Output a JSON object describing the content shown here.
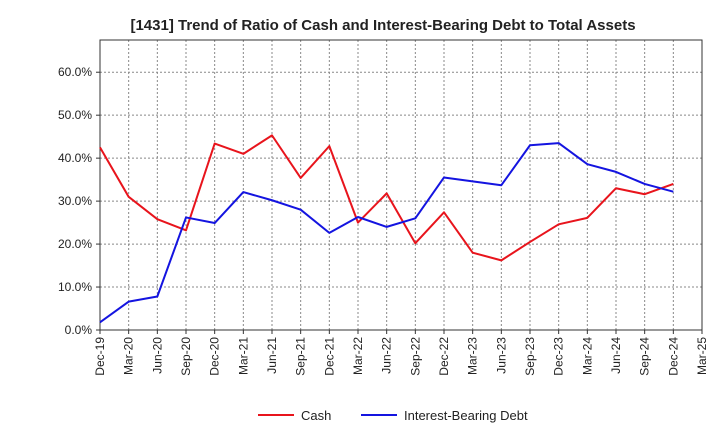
{
  "chart_data": {
    "type": "line",
    "title": "[1431]  Trend of Ratio of Cash and Interest-Bearing Debt to Total Assets",
    "xlabel": "",
    "ylabel": "",
    "ylim": [
      0,
      0.675
    ],
    "grid": true,
    "legend_position": "bottom-center",
    "y_ticks": [
      {
        "value": 0.0,
        "label": "0.0%"
      },
      {
        "value": 0.1,
        "label": "10.0%"
      },
      {
        "value": 0.2,
        "label": "20.0%"
      },
      {
        "value": 0.3,
        "label": "30.0%"
      },
      {
        "value": 0.4,
        "label": "40.0%"
      },
      {
        "value": 0.5,
        "label": "50.0%"
      },
      {
        "value": 0.6,
        "label": "60.0%"
      }
    ],
    "x": [
      "Dec-19",
      "Mar-20",
      "Jun-20",
      "Sep-20",
      "Dec-20",
      "Mar-21",
      "Jun-21",
      "Sep-21",
      "Dec-21",
      "Mar-22",
      "Jun-22",
      "Sep-22",
      "Dec-22",
      "Mar-23",
      "Jun-23",
      "Sep-23",
      "Dec-23",
      "Mar-24",
      "Jun-24",
      "Sep-24",
      "Dec-24",
      "Mar-25"
    ],
    "series": [
      {
        "name": "Cash",
        "color": "#e8141c",
        "values": [
          0.425,
          0.31,
          0.258,
          0.232,
          0.434,
          0.41,
          0.453,
          0.354,
          0.428,
          0.25,
          0.318,
          0.202,
          0.274,
          0.18,
          0.162,
          0.205,
          0.246,
          0.261,
          0.33,
          0.316,
          0.34,
          null
        ]
      },
      {
        "name": "Interest-Bearing Debt",
        "color": "#1414e0",
        "values": [
          0.018,
          0.066,
          0.078,
          0.262,
          0.249,
          0.321,
          0.302,
          0.28,
          0.226,
          0.263,
          0.24,
          0.26,
          0.355,
          0.346,
          0.337,
          0.43,
          0.435,
          0.386,
          0.368,
          0.34,
          0.322,
          null
        ]
      }
    ]
  }
}
